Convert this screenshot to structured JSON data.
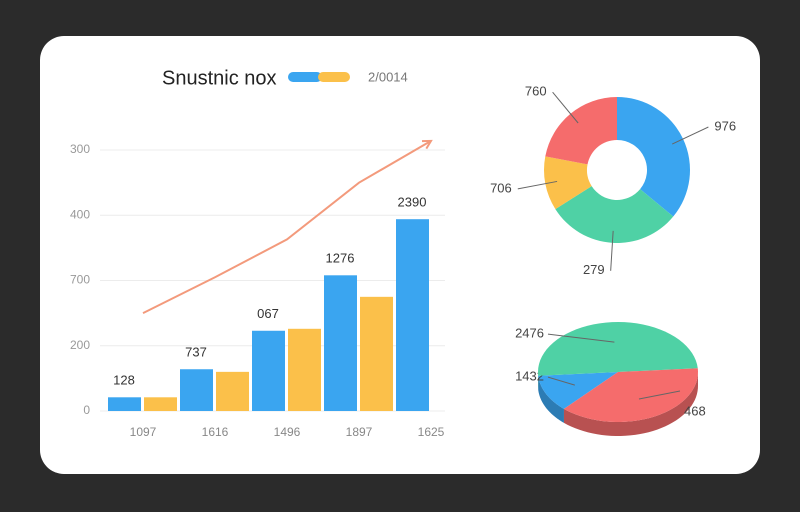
{
  "chart_data": [
    {
      "type": "bar",
      "title": "Snustnic nox",
      "legend_label": "2/0014",
      "categories": [
        "1097",
        "1616",
        "1496",
        "1897",
        "1625"
      ],
      "series": [
        {
          "color": "#3aa5f0",
          "values": [
            21,
            64,
            123,
            208,
            294
          ]
        },
        {
          "color": "#fbc04a",
          "values": [
            21,
            60,
            126,
            175,
            null
          ]
        },
        {
          "kind": "line",
          "color": "#f39a7c",
          "values": [
            150,
            205,
            263,
            350,
            414
          ]
        }
      ],
      "annotations": [
        "128",
        "737",
        "067",
        "1276",
        "2390"
      ],
      "ylim": [
        0,
        420
      ],
      "yticks": [
        0,
        {
          "value": 100,
          "label": "200"
        },
        {
          "value": 200,
          "label": "700"
        },
        {
          "value": 300,
          "label": "400"
        },
        {
          "value": 400,
          "label": "300"
        }
      ],
      "grid": true
    },
    {
      "type": "donut",
      "categories": [
        "976",
        "279",
        "706",
        "760"
      ],
      "values": [
        36,
        30,
        12,
        22
      ],
      "colors": [
        "#3aa5f0",
        "#4fd1a5",
        "#fbc04a",
        "#f56c6c"
      ]
    },
    {
      "type": "pie3d",
      "categories": [
        "1432",
        "2476",
        "468"
      ],
      "values": [
        12,
        50,
        38
      ],
      "colors": [
        "#3aa5f0",
        "#4fd1a5",
        "#f56c6c"
      ]
    }
  ]
}
